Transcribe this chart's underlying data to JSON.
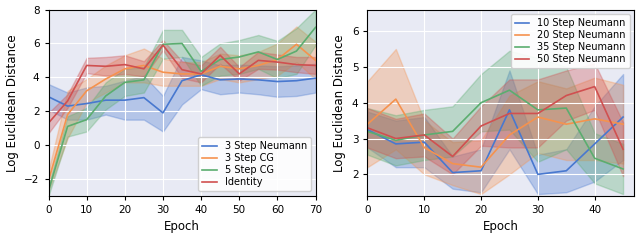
{
  "left": {
    "xlabel": "Epoch",
    "ylabel": "Log Euclidean Distance",
    "xlim": [
      0,
      70
    ],
    "ylim": [
      -3,
      8
    ],
    "xticks": [
      0,
      10,
      20,
      30,
      40,
      50,
      60,
      70
    ],
    "yticks": [
      -2,
      0,
      2,
      4,
      6,
      8
    ],
    "series": [
      {
        "label": "3 Step Neumann",
        "color": "#4878CF",
        "x": [
          0,
          5,
          10,
          15,
          20,
          25,
          30,
          35,
          40,
          45,
          50,
          55,
          60,
          65,
          70
        ],
        "mean": [
          2.85,
          2.3,
          2.45,
          2.65,
          2.65,
          2.8,
          1.9,
          3.8,
          4.15,
          3.85,
          3.9,
          3.85,
          3.75,
          3.8,
          3.95
        ],
        "lo": [
          2.1,
          1.5,
          1.5,
          1.8,
          1.5,
          1.5,
          0.8,
          2.4,
          3.3,
          3.0,
          3.1,
          3.0,
          2.85,
          2.9,
          3.1
        ],
        "hi": [
          3.6,
          3.1,
          3.4,
          3.5,
          3.8,
          4.1,
          2.9,
          5.2,
          5.0,
          4.7,
          4.75,
          4.7,
          4.65,
          4.7,
          4.8
        ]
      },
      {
        "label": "3 Step CG",
        "color": "#F5924E",
        "x": [
          0,
          5,
          10,
          15,
          20,
          25,
          30,
          35,
          40,
          45,
          50,
          55,
          60,
          65,
          70
        ],
        "mean": [
          -2.1,
          1.8,
          3.2,
          3.9,
          4.5,
          4.7,
          4.3,
          4.2,
          4.2,
          4.65,
          4.5,
          4.7,
          5.05,
          5.95,
          5.0
        ],
        "lo": [
          -2.7,
          0.4,
          2.5,
          3.1,
          3.7,
          3.7,
          3.5,
          3.5,
          3.5,
          3.9,
          3.7,
          3.9,
          4.1,
          4.9,
          3.9
        ],
        "hi": [
          -1.5,
          3.2,
          3.9,
          4.7,
          5.3,
          5.7,
          5.1,
          4.9,
          4.9,
          5.4,
          5.3,
          5.5,
          6.0,
          7.0,
          6.1
        ]
      },
      {
        "label": "5 Step CG",
        "color": "#5BAD6F",
        "x": [
          0,
          5,
          10,
          15,
          20,
          25,
          30,
          35,
          40,
          45,
          50,
          55,
          60,
          65,
          70
        ],
        "mean": [
          -2.7,
          1.1,
          1.5,
          2.9,
          3.7,
          3.85,
          5.95,
          6.0,
          4.35,
          5.05,
          5.2,
          5.5,
          5.05,
          5.55,
          6.95
        ],
        "lo": [
          -3.0,
          0.5,
          0.8,
          2.1,
          2.9,
          3.1,
          5.1,
          5.2,
          3.5,
          4.1,
          4.2,
          4.5,
          3.95,
          4.2,
          5.9
        ],
        "hi": [
          -2.4,
          1.7,
          2.2,
          3.7,
          4.5,
          4.6,
          6.8,
          6.8,
          5.2,
          6.0,
          6.2,
          6.5,
          6.15,
          6.9,
          8.0
        ]
      },
      {
        "label": "Identity",
        "color": "#D05050",
        "x": [
          0,
          5,
          10,
          15,
          20,
          25,
          30,
          35,
          40,
          45,
          50,
          55,
          60,
          65,
          70
        ],
        "mean": [
          1.3,
          2.6,
          4.7,
          4.65,
          4.75,
          4.5,
          5.9,
          4.45,
          4.2,
          5.3,
          4.2,
          5.0,
          4.9,
          4.75,
          4.7
        ],
        "lo": [
          0.7,
          2.2,
          4.25,
          4.1,
          4.2,
          4.05,
          5.6,
          3.95,
          3.7,
          4.8,
          3.8,
          4.5,
          4.45,
          4.3,
          4.2
        ],
        "hi": [
          1.9,
          3.0,
          5.15,
          5.2,
          5.3,
          4.95,
          6.2,
          4.95,
          4.7,
          5.8,
          4.6,
          5.5,
          5.35,
          5.2,
          5.2
        ]
      }
    ]
  },
  "right": {
    "xlabel": "Epoch",
    "ylabel": "Log Euclidean Distance",
    "xlim": [
      0,
      47
    ],
    "ylim": [
      1.4,
      6.6
    ],
    "xticks": [
      0,
      10,
      20,
      30,
      40
    ],
    "yticks": [
      2,
      3,
      4,
      5,
      6
    ],
    "series": [
      {
        "label": "10 Step Neumann",
        "color": "#4878CF",
        "x": [
          0,
          5,
          10,
          15,
          20,
          25,
          30,
          35,
          40,
          45
        ],
        "mean": [
          3.25,
          2.85,
          2.9,
          2.05,
          2.1,
          3.8,
          2.0,
          2.1,
          2.85,
          3.6
        ],
        "lo": [
          2.75,
          2.2,
          2.2,
          1.6,
          1.5,
          2.7,
          1.45,
          1.5,
          1.8,
          2.4
        ],
        "hi": [
          3.75,
          3.5,
          3.6,
          2.5,
          2.7,
          4.9,
          2.55,
          2.7,
          3.9,
          4.8
        ]
      },
      {
        "label": "20 Step Neumann",
        "color": "#F5924E",
        "x": [
          0,
          5,
          10,
          15,
          20,
          25,
          30,
          35,
          40,
          45
        ],
        "mean": [
          3.4,
          4.1,
          2.75,
          2.3,
          2.2,
          3.1,
          3.6,
          3.4,
          3.55,
          3.4
        ],
        "lo": [
          2.2,
          2.7,
          2.0,
          1.7,
          1.45,
          2.0,
          2.6,
          2.4,
          2.4,
          2.3
        ],
        "hi": [
          4.6,
          5.5,
          3.5,
          2.9,
          2.95,
          4.2,
          4.6,
          4.4,
          4.7,
          4.5
        ]
      },
      {
        "label": "35 Step Neumann",
        "color": "#5BAD6F",
        "x": [
          0,
          5,
          10,
          15,
          20,
          25,
          30,
          35,
          40,
          45
        ],
        "mean": [
          3.2,
          2.95,
          3.1,
          3.2,
          4.0,
          4.35,
          3.8,
          3.85,
          2.45,
          2.15
        ],
        "lo": [
          2.55,
          2.25,
          2.4,
          2.5,
          3.2,
          3.25,
          2.35,
          2.7,
          1.75,
          1.45
        ],
        "hi": [
          3.85,
          3.65,
          3.8,
          3.9,
          4.8,
          5.45,
          5.25,
          5.0,
          3.15,
          2.85
        ]
      },
      {
        "label": "50 Step Neumann",
        "color": "#D05050",
        "x": [
          0,
          5,
          10,
          15,
          20,
          25,
          30,
          35,
          40,
          45
        ],
        "mean": [
          3.3,
          3.0,
          3.1,
          2.5,
          3.35,
          3.7,
          3.7,
          4.2,
          4.45,
          2.7
        ],
        "lo": [
          2.75,
          2.45,
          2.5,
          2.0,
          2.8,
          2.75,
          2.75,
          3.5,
          3.8,
          1.95
        ],
        "hi": [
          3.85,
          3.55,
          3.7,
          3.0,
          3.9,
          4.65,
          4.65,
          4.9,
          5.1,
          3.45
        ]
      }
    ]
  },
  "bg_color": "#E8EAF4",
  "alpha_fill": 0.32,
  "legend_fontsize": 7.0,
  "axis_label_fontsize": 8.5,
  "tick_fontsize": 7.5
}
